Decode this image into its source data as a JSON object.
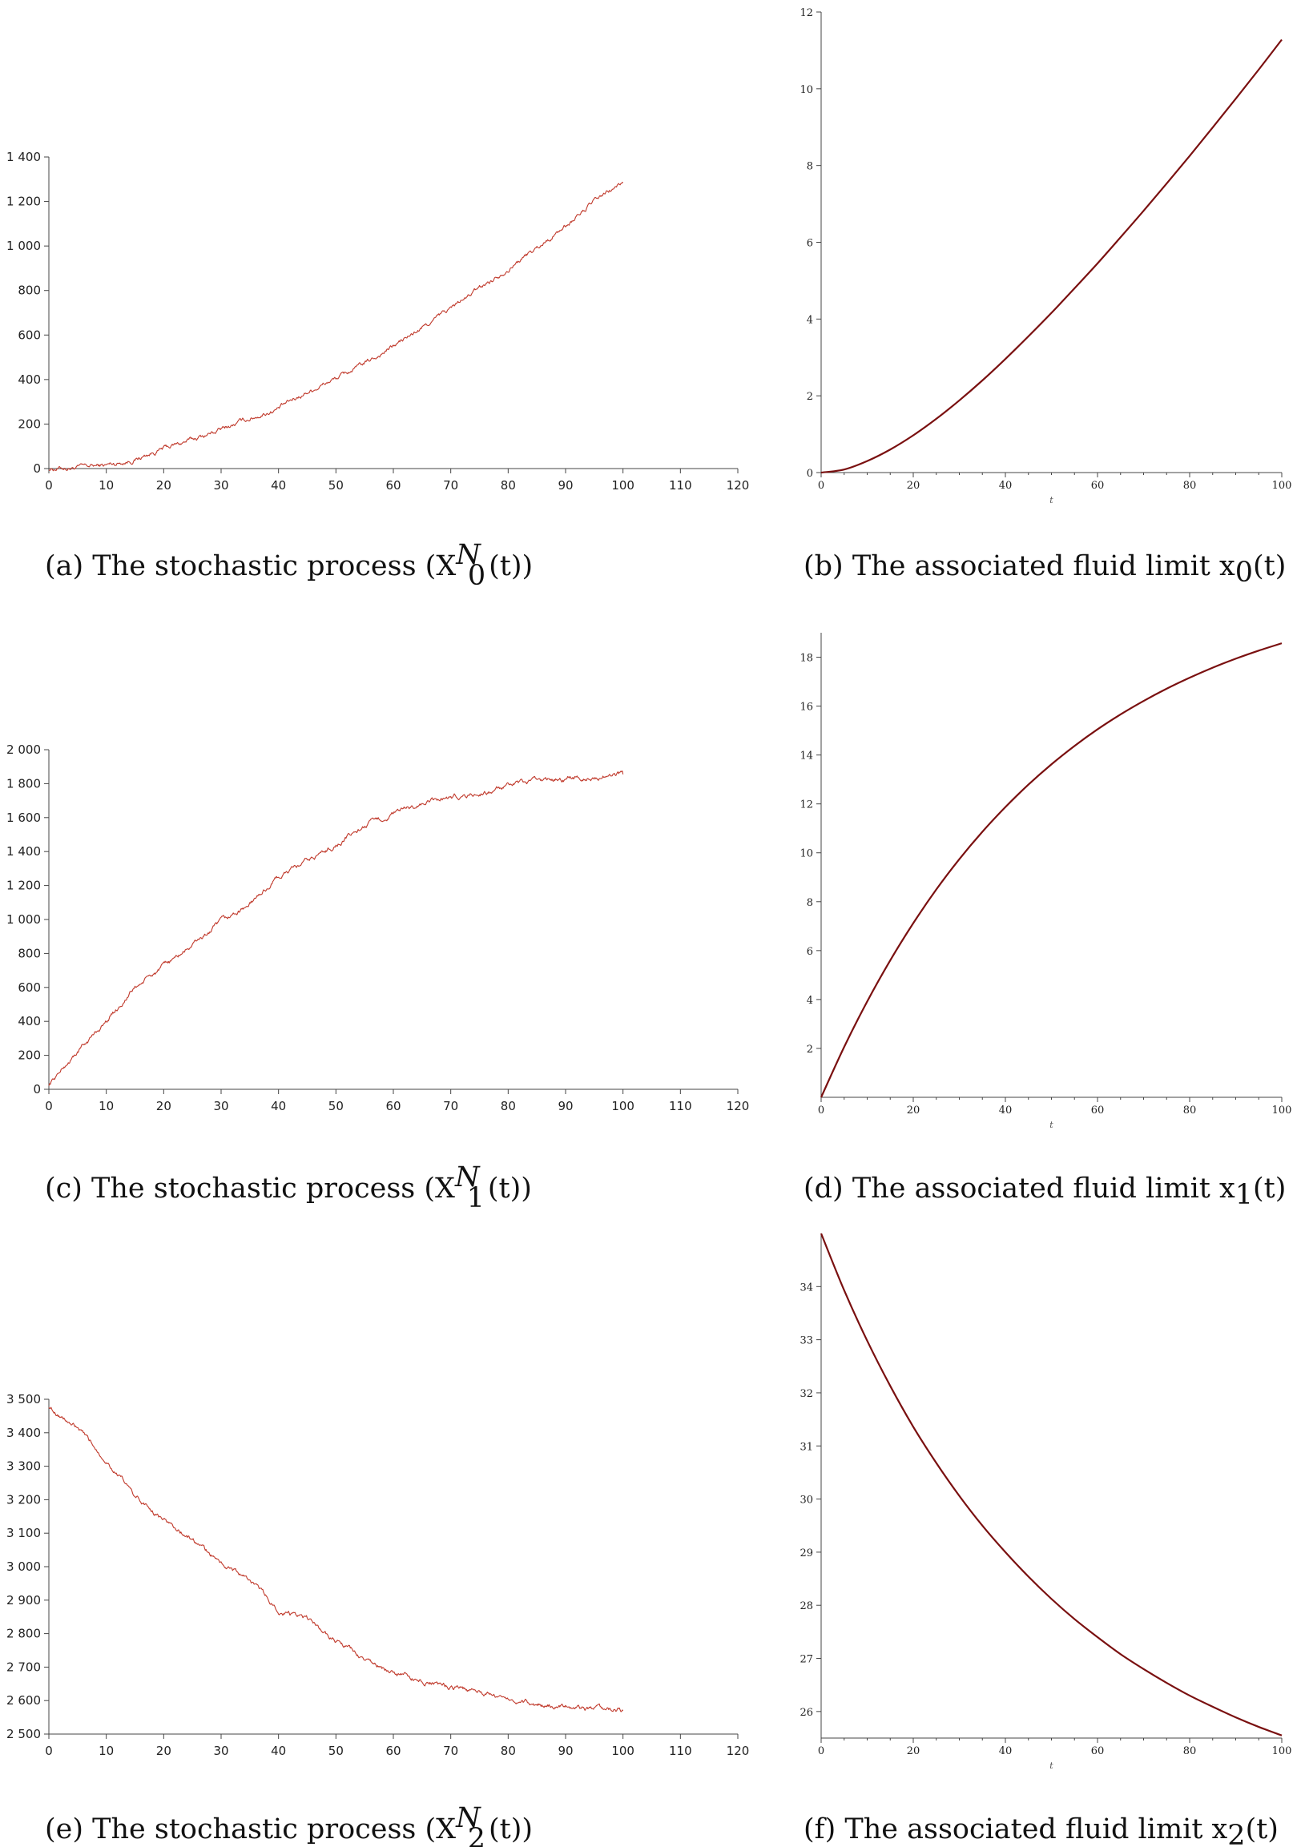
{
  "figure": {
    "captions": [
      {
        "prefix": "(a) The stochastic process (",
        "var": "X",
        "sub": "0",
        "sup": "N",
        "suffix": "(t))"
      },
      {
        "prefix": "(b) The associated fluid limit ",
        "var": "x",
        "sub": "0",
        "sup": "",
        "suffix": "(t)"
      },
      {
        "prefix": "(c) The stochastic process (",
        "var": "X",
        "sub": "1",
        "sup": "N",
        "suffix": "(t))"
      },
      {
        "prefix": "(d) The associated fluid limit ",
        "var": "x",
        "sub": "1",
        "sup": "",
        "suffix": "(t)"
      },
      {
        "prefix": "(e) The stochastic process (",
        "var": "X",
        "sub": "2",
        "sup": "N",
        "suffix": "(t))"
      },
      {
        "prefix": "(f) The associated fluid limit ",
        "var": "x",
        "sub": "2",
        "sup": "",
        "suffix": "(t)"
      }
    ]
  },
  "chart_data": [
    {
      "id": "a",
      "type": "line",
      "style": "stochastic",
      "color": "#c0392b",
      "xlim": [
        0,
        120
      ],
      "ylim": [
        0,
        1400
      ],
      "xticks": [
        0,
        10,
        20,
        30,
        40,
        50,
        60,
        70,
        80,
        90,
        100,
        110,
        120
      ],
      "xtick_labels": [
        "0",
        "10",
        "20",
        "30",
        "40",
        "50",
        "60",
        "70",
        "80",
        "90",
        "100",
        "110",
        "120"
      ],
      "yticks": [
        0,
        200,
        400,
        600,
        800,
        1000,
        1200,
        1400
      ],
      "ytick_labels": [
        "0",
        "200",
        "400",
        "600",
        "800",
        "1 000",
        "1 200",
        "1 400"
      ],
      "x": [
        0,
        5,
        10,
        15,
        20,
        25,
        30,
        35,
        40,
        45,
        50,
        55,
        60,
        65,
        70,
        75,
        80,
        85,
        90,
        95,
        100
      ],
      "y": [
        0,
        5,
        15,
        40,
        90,
        130,
        175,
        225,
        270,
        345,
        405,
        470,
        550,
        630,
        720,
        810,
        900,
        990,
        1090,
        1200,
        1285
      ]
    },
    {
      "id": "b",
      "type": "line",
      "style": "smooth",
      "color": "#7a1010",
      "xlim": [
        0,
        100
      ],
      "ylim": [
        0,
        12
      ],
      "xticks": [
        0,
        20,
        40,
        60,
        80,
        100
      ],
      "xtick_labels": [
        "0",
        "20",
        "40",
        "60",
        "80",
        "100"
      ],
      "yticks": [
        0,
        2,
        4,
        6,
        8,
        10,
        12
      ],
      "ytick_labels": [
        "0",
        "2",
        "4",
        "6",
        "8",
        "10",
        "12"
      ],
      "xlabel": "t",
      "x": [
        0,
        5,
        10,
        15,
        20,
        25,
        30,
        35,
        40,
        45,
        50,
        55,
        60,
        65,
        70,
        75,
        80,
        85,
        90,
        95,
        100
      ],
      "y": [
        0,
        0.08,
        0.3,
        0.6,
        0.97,
        1.4,
        1.88,
        2.4,
        2.96,
        3.55,
        4.16,
        4.8,
        5.45,
        6.13,
        6.82,
        7.53,
        8.25,
        8.99,
        9.74,
        10.5,
        11.28
      ]
    },
    {
      "id": "c",
      "type": "line",
      "style": "stochastic",
      "color": "#c0392b",
      "xlim": [
        0,
        120
      ],
      "ylim": [
        0,
        2000
      ],
      "xticks": [
        0,
        10,
        20,
        30,
        40,
        50,
        60,
        70,
        80,
        90,
        100,
        110,
        120
      ],
      "xtick_labels": [
        "0",
        "10",
        "20",
        "30",
        "40",
        "50",
        "60",
        "70",
        "80",
        "90",
        "100",
        "110",
        "120"
      ],
      "yticks": [
        0,
        200,
        400,
        600,
        800,
        1000,
        1200,
        1400,
        1600,
        1800,
        2000
      ],
      "ytick_labels": [
        "0",
        "200",
        "400",
        "600",
        "800",
        "1 000",
        "1 200",
        "1 400",
        "1 600",
        "1 800",
        "2 000"
      ],
      "x": [
        0,
        5,
        10,
        15,
        20,
        25,
        30,
        35,
        40,
        45,
        50,
        55,
        60,
        65,
        70,
        75,
        80,
        85,
        90,
        95,
        100
      ],
      "y": [
        30,
        220,
        400,
        600,
        720,
        850,
        980,
        1090,
        1250,
        1340,
        1440,
        1550,
        1620,
        1680,
        1720,
        1740,
        1780,
        1820,
        1830,
        1840,
        1855
      ]
    },
    {
      "id": "d",
      "type": "line",
      "style": "smooth",
      "color": "#7a1010",
      "xlim": [
        0,
        100
      ],
      "ylim": [
        0,
        19
      ],
      "xticks": [
        0,
        20,
        40,
        60,
        80,
        100
      ],
      "xtick_labels": [
        "0",
        "20",
        "40",
        "60",
        "80",
        "100"
      ],
      "yticks": [
        2,
        4,
        6,
        8,
        10,
        12,
        14,
        16,
        18
      ],
      "ytick_labels": [
        "2",
        "4",
        "6",
        "8",
        "10",
        "12",
        "14",
        "16",
        "18"
      ],
      "xlabel": "t",
      "x": [
        0,
        5,
        10,
        15,
        20,
        25,
        30,
        35,
        40,
        45,
        50,
        55,
        60,
        65,
        70,
        75,
        80,
        85,
        90,
        95,
        100
      ],
      "y": [
        0,
        2.06,
        3.92,
        5.6,
        7.12,
        8.5,
        9.74,
        10.86,
        11.87,
        12.79,
        13.62,
        14.37,
        15.05,
        15.66,
        16.21,
        16.71,
        17.16,
        17.57,
        17.94,
        18.27,
        18.57
      ]
    },
    {
      "id": "e",
      "type": "line",
      "style": "stochastic",
      "color": "#c0392b",
      "xlim": [
        0,
        120
      ],
      "ylim": [
        2500,
        3500
      ],
      "xticks": [
        0,
        10,
        20,
        30,
        40,
        50,
        60,
        70,
        80,
        90,
        100,
        110,
        120
      ],
      "xtick_labels": [
        "0",
        "10",
        "20",
        "30",
        "40",
        "50",
        "60",
        "70",
        "80",
        "90",
        "100",
        "110",
        "120"
      ],
      "yticks": [
        2500,
        2600,
        2700,
        2800,
        2900,
        3000,
        3100,
        3200,
        3300,
        3400,
        3500
      ],
      "ytick_labels": [
        "2 500",
        "2 600",
        "2 700",
        "2 800",
        "2 900",
        "3 000",
        "3 100",
        "3 200",
        "3 300",
        "3 400",
        "3 500"
      ],
      "x": [
        0,
        5,
        10,
        15,
        20,
        25,
        30,
        35,
        40,
        45,
        50,
        55,
        60,
        65,
        70,
        75,
        80,
        85,
        90,
        95,
        100
      ],
      "y": [
        3480,
        3410,
        3320,
        3210,
        3140,
        3080,
        3010,
        2960,
        2870,
        2840,
        2780,
        2720,
        2680,
        2660,
        2640,
        2625,
        2610,
        2590,
        2585,
        2575,
        2570
      ]
    },
    {
      "id": "f",
      "type": "line",
      "style": "smooth",
      "color": "#7a1010",
      "xlim": [
        0,
        100
      ],
      "ylim": [
        25.5,
        35
      ],
      "xticks": [
        0,
        20,
        40,
        60,
        80,
        100
      ],
      "xtick_labels": [
        "0",
        "20",
        "40",
        "60",
        "80",
        "100"
      ],
      "yticks": [
        26,
        27,
        28,
        29,
        30,
        31,
        32,
        33,
        34
      ],
      "ytick_labels": [
        "26",
        "27",
        "28",
        "29",
        "30",
        "31",
        "32",
        "33",
        "34"
      ],
      "xlabel": "t",
      "x": [
        0,
        5,
        10,
        15,
        20,
        25,
        30,
        35,
        40,
        45,
        50,
        55,
        60,
        65,
        70,
        75,
        80,
        85,
        90,
        95,
        100
      ],
      "y": [
        35,
        33.93,
        32.98,
        32.13,
        31.36,
        30.68,
        30.06,
        29.5,
        29,
        28.54,
        28.12,
        27.74,
        27.4,
        27.08,
        26.8,
        26.54,
        26.3,
        26.09,
        25.89,
        25.71,
        25.55
      ]
    }
  ]
}
